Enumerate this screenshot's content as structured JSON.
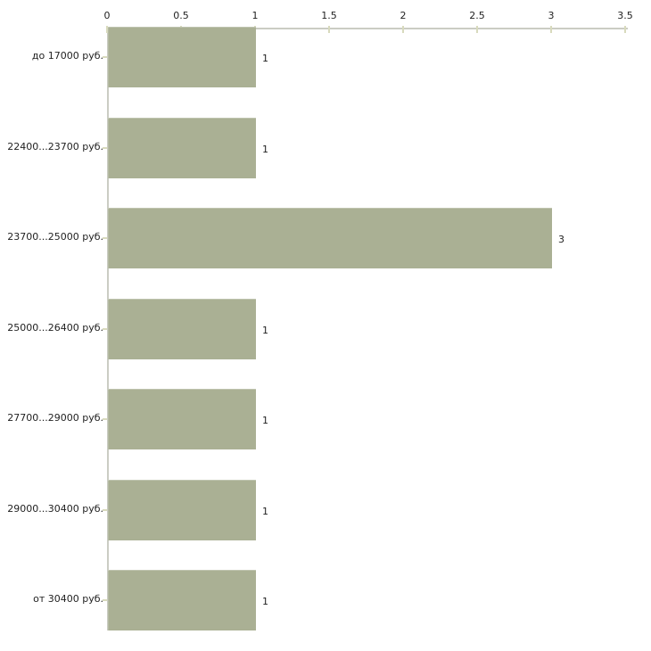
{
  "chart_data": {
    "type": "bar",
    "orientation": "horizontal",
    "title": "",
    "xlabel": "",
    "ylabel": "",
    "categories": [
      "до 17000 руб.",
      "22400...23700 руб.",
      "23700...25000 руб.",
      "25000...26400 руб.",
      "27700...29000 руб.",
      "29000...30400 руб.",
      "от 30400 руб."
    ],
    "values": [
      1,
      1,
      3,
      1,
      1,
      1,
      1
    ],
    "value_labels": [
      "1",
      "1",
      "3",
      "1",
      "1",
      "1",
      "1"
    ],
    "xlim": [
      0,
      3.5
    ],
    "x_ticks": [
      0,
      0.5,
      1,
      1.5,
      2,
      2.5,
      3,
      3.5
    ],
    "x_tick_labels": [
      "0",
      "0.5",
      "1",
      "1.5",
      "2",
      "2.5",
      "3",
      "3.5"
    ],
    "x_axis_position": "top",
    "grid": false,
    "legend": false,
    "colors": {
      "bar": "#aab094",
      "axis_line": "#cbcdc4",
      "tick_mark": "#d8dabd",
      "text": "#1f1f1f",
      "background": "#ffffff"
    }
  }
}
